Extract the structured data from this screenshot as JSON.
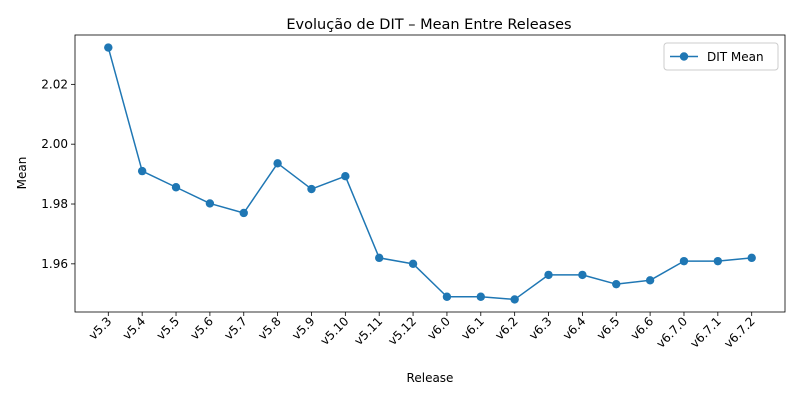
{
  "chart_data": {
    "type": "line",
    "title": "Evolução de DIT – Mean Entre Releases",
    "xlabel": "Release",
    "ylabel": "Mean",
    "categories": [
      "v5.3",
      "v5.4",
      "v5.5",
      "v5.6",
      "v5.7",
      "v5.8",
      "v5.9",
      "v5.10",
      "v5.11",
      "v5.12",
      "v6.0",
      "v6.1",
      "v6.2",
      "v6.3",
      "v6.4",
      "v6.5",
      "v6.6",
      "v6.7.0",
      "v6.7.1",
      "v6.7.2"
    ],
    "series": [
      {
        "name": "DIT Mean",
        "color": "#1f77b4",
        "marker": "circle",
        "values": [
          2.0323,
          1.991,
          1.9856,
          1.9802,
          1.977,
          1.9936,
          1.985,
          1.9893,
          1.962,
          1.96,
          1.949,
          1.949,
          1.9481,
          1.9563,
          1.9563,
          1.9532,
          1.9545,
          1.9609,
          1.9609,
          1.962
        ]
      }
    ],
    "ylim": [
      1.9439,
      2.0365
    ],
    "yticks": [
      1.96,
      1.98,
      2.0,
      2.02
    ],
    "ytick_labels": [
      "1.96",
      "1.98",
      "2.00",
      "2.02"
    ],
    "grid": false,
    "legend_position": "top-right"
  }
}
